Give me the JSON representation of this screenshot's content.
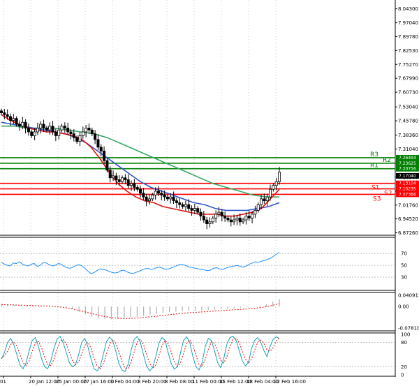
{
  "chart_data": {
    "type": "candlestick",
    "price_axis": {
      "ylim": [
        6.86,
        8.06
      ],
      "ticks": [
        "8.04300",
        "7.97040",
        "7.89780",
        "7.82530",
        "7.75270",
        "7.67990",
        "7.60730",
        "7.53040",
        "7.45780",
        "7.38360",
        "7.31040",
        "7.23640",
        "7.16360",
        "7.09040",
        "7.01760",
        "6.94520",
        "6.87260"
      ]
    },
    "time_axis": {
      "labels": [
        "01",
        "20 Jan 12:00",
        "25 Jan 00:00",
        "27 Jan 16:00",
        "1 Feb 04:00",
        "3 Feb 20:00",
        "8 Feb 08:00",
        "11 Feb 00:00",
        "15 Feb 12:00",
        "18 Feb 04:00",
        "22 Feb 16:00"
      ]
    },
    "levels": [
      {
        "name": "R3",
        "value": "7.26494",
        "color": "#008000"
      },
      {
        "name": "R2",
        "value": "7.23625",
        "color": "#008000"
      },
      {
        "name": "R1",
        "value": "7.20756",
        "color": "#008000"
      },
      {
        "name": "",
        "value": "7.17040",
        "color": "#000000"
      },
      {
        "name": "S1",
        "value": "7.13104",
        "color": "#ff0000"
      },
      {
        "name": "S2",
        "value": "7.10235",
        "color": "#ff0000"
      },
      {
        "name": "S3",
        "value": "7.07366",
        "color": "#ff0000"
      }
    ],
    "close_series": [
      7.5,
      7.49,
      7.48,
      7.46,
      7.47,
      7.44,
      7.43,
      7.45,
      7.42,
      7.4,
      7.38,
      7.4,
      7.42,
      7.44,
      7.42,
      7.41,
      7.43,
      7.4,
      7.38,
      7.41,
      7.43,
      7.42,
      7.4,
      7.39,
      7.37,
      7.35,
      7.38,
      7.4,
      7.42,
      7.41,
      7.39,
      7.36,
      7.32,
      7.3,
      7.25,
      7.2,
      7.16,
      7.17,
      7.15,
      7.14,
      7.16,
      7.15,
      7.12,
      7.13,
      7.11,
      7.1,
      7.08,
      7.06,
      7.04,
      7.05,
      7.07,
      7.09,
      7.08,
      7.07,
      7.06,
      7.05,
      7.06,
      7.04,
      7.03,
      7.02,
      7.01,
      7.02,
      7.0,
      6.99,
      7.0,
      6.98,
      6.96,
      6.94,
      6.92,
      6.93,
      6.95,
      6.97,
      6.98,
      6.96,
      6.95,
      6.94,
      6.93,
      6.94,
      6.95,
      6.93,
      6.94,
      6.96,
      6.95,
      6.97,
      6.99,
      7.02,
      7.05,
      7.04,
      7.06,
      7.1,
      7.12,
      7.14,
      7.19
    ],
    "ma_fast": {
      "color": "#e01010",
      "values": [
        7.49,
        7.46,
        7.44,
        7.42,
        7.41,
        7.4,
        7.4,
        7.39,
        7.38,
        7.36,
        7.32,
        7.26,
        7.19,
        7.13,
        7.09,
        7.06,
        7.04,
        7.03,
        7.01,
        7.0,
        6.99,
        6.98,
        6.97,
        6.97,
        6.97,
        6.96,
        6.96,
        6.97,
        6.98,
        7.0,
        7.05,
        7.1
      ]
    },
    "ma_mid": {
      "color": "#3355cc",
      "values": [
        7.45,
        7.44,
        7.43,
        7.42,
        7.41,
        7.4,
        7.39,
        7.37,
        7.34,
        7.3,
        7.26,
        7.22,
        7.18,
        7.14,
        7.11,
        7.09,
        7.07,
        7.05,
        7.03,
        7.02,
        7.0,
        6.99,
        6.99,
        6.99,
        7.0,
        7.01,
        7.03
      ]
    },
    "ma_slow": {
      "color": "#33aa66",
      "values": [
        7.43,
        7.43,
        7.42,
        7.42,
        7.42,
        7.41,
        7.4,
        7.39,
        7.37,
        7.34,
        7.31,
        7.28,
        7.25,
        7.22,
        7.19,
        7.16,
        7.13,
        7.11,
        7.09,
        7.07,
        7.06,
        7.06
      ]
    },
    "rsi": {
      "ticks": [
        "70",
        "50",
        "30"
      ],
      "ylim": [
        10,
        95
      ],
      "values": [
        55,
        52,
        50,
        49,
        54,
        53,
        56,
        52,
        50,
        49,
        52,
        53,
        48,
        50,
        55,
        54,
        51,
        49,
        50,
        53,
        52,
        48,
        46,
        45,
        47,
        50,
        51,
        49,
        45,
        40,
        36,
        38,
        41,
        44,
        43,
        42,
        40,
        38,
        37,
        38,
        41,
        42,
        39,
        37,
        36,
        38,
        40,
        42,
        44,
        45,
        43,
        44,
        46,
        47,
        45,
        43,
        44,
        46,
        48,
        50,
        52,
        51,
        49,
        47,
        46,
        45,
        44,
        43,
        42,
        41,
        42,
        45,
        46,
        44,
        43,
        45,
        47,
        48,
        49,
        50,
        48,
        47,
        49,
        52,
        54,
        56,
        55,
        57,
        58,
        60,
        62,
        65,
        69,
        72
      ]
    },
    "macd": {
      "ticks": [
        "0.040913",
        "0.00",
        "-0.078101"
      ],
      "ylim": [
        -0.09,
        0.05
      ],
      "histogram": [
        0.01,
        0.008,
        0.006,
        0.004,
        0.004,
        0.003,
        0.002,
        0.002,
        0.001,
        -0.001,
        -0.004,
        -0.01,
        -0.02,
        -0.03,
        -0.04,
        -0.045,
        -0.048,
        -0.05,
        -0.048,
        -0.045,
        -0.042,
        -0.04,
        -0.036,
        -0.032,
        -0.028,
        -0.025,
        -0.022,
        -0.02,
        -0.018,
        -0.017,
        -0.016,
        -0.015,
        -0.014,
        -0.012,
        -0.01,
        -0.008,
        -0.006,
        -0.004,
        -0.002,
        0.0,
        0.004,
        0.01,
        0.02,
        0.03
      ],
      "signal": [
        0.008,
        0.007,
        0.006,
        0.005,
        0.004,
        0.003,
        0.002,
        0.0,
        -0.003,
        -0.008,
        -0.015,
        -0.022,
        -0.03,
        -0.037,
        -0.042,
        -0.046,
        -0.047,
        -0.046,
        -0.044,
        -0.041,
        -0.038,
        -0.035,
        -0.031,
        -0.028,
        -0.025,
        -0.023,
        -0.021,
        -0.019,
        -0.017,
        -0.015,
        -0.013,
        -0.011,
        -0.009,
        -0.006,
        -0.002,
        0.004,
        0.012
      ]
    },
    "stochastic": {
      "ticks": [
        "100",
        "80",
        "20",
        "0"
      ],
      "ylim": [
        0,
        100
      ],
      "k": [
        40,
        55,
        80,
        90,
        75,
        50,
        25,
        15,
        30,
        60,
        85,
        92,
        70,
        40,
        20,
        15,
        35,
        65,
        88,
        95,
        80,
        55,
        30,
        20,
        25,
        50,
        80,
        90,
        70,
        40,
        15,
        10,
        20,
        50,
        82,
        93,
        85,
        60,
        30,
        12,
        8,
        25,
        60,
        88,
        95,
        80,
        50,
        22,
        10,
        18,
        45,
        78,
        92,
        85,
        55,
        28,
        14,
        20,
        55,
        85,
        94,
        80,
        45,
        20,
        12,
        30,
        70,
        90,
        85,
        60,
        30,
        18,
        40,
        75,
        92,
        95,
        85,
        60,
        35,
        22,
        30,
        65,
        85,
        92,
        80,
        60,
        45,
        70,
        88,
        94,
        90
      ]
    },
    "colors": {
      "up": "#000000",
      "down": "#000000",
      "rsi": "#1e90ff",
      "k": "#17a2b8",
      "d": "#e01010",
      "grid": "#cccccc"
    }
  }
}
